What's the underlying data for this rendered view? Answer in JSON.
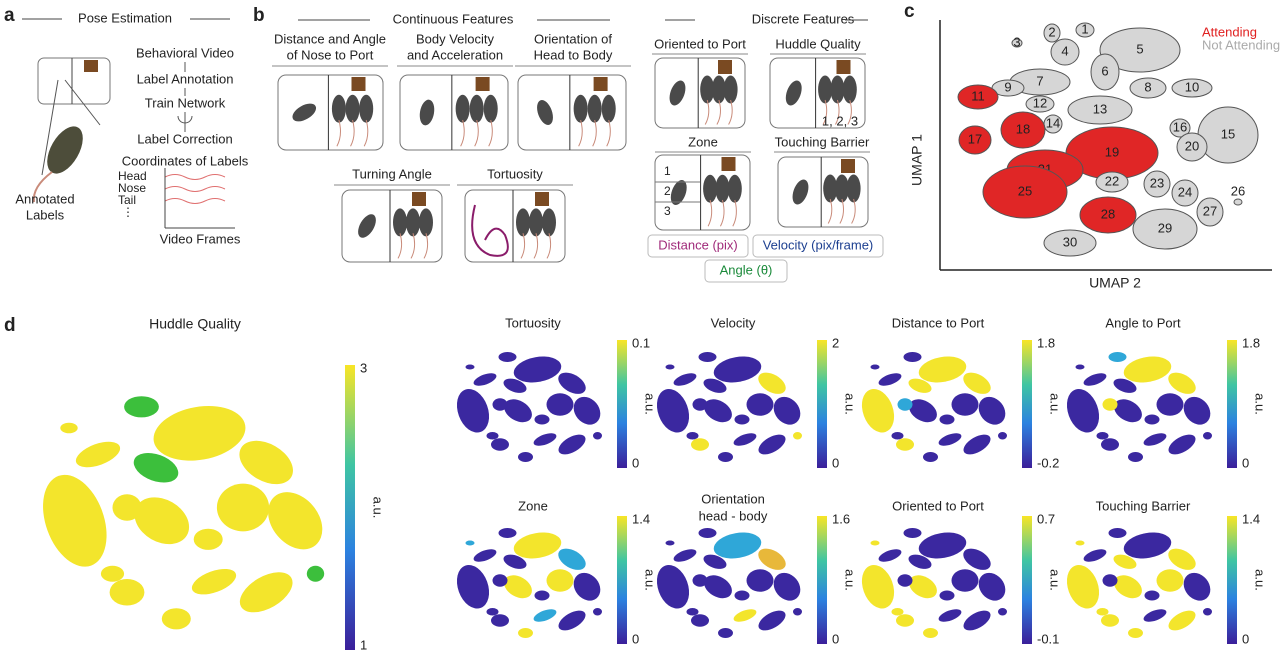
{
  "panel_a": {
    "label": "a",
    "title": "Pose Estimation",
    "steps": [
      "Behavioral Video",
      "Label Annotation",
      "Train Network",
      "Label Correction",
      "Coordinates of Labels"
    ],
    "traces": [
      "Head",
      "Nose",
      "Tail"
    ],
    "x_label": "Video Frames",
    "annotation": [
      "Annotated",
      "Labels"
    ]
  },
  "panel_b": {
    "label": "b",
    "continuous_title": "Continuous Features",
    "continuous": [
      {
        "title": [
          "Distance and Angle",
          "of Nose to Port"
        ]
      },
      {
        "title": [
          "Body Velocity",
          "and Acceleration"
        ]
      },
      {
        "title": [
          "Orientation of",
          "Head to Body"
        ]
      },
      {
        "title": [
          "Turning Angle"
        ]
      },
      {
        "title": [
          "Tortuosity"
        ]
      }
    ],
    "discrete_title": "Discrete Features",
    "discrete": [
      {
        "title": "Oriented to Port"
      },
      {
        "title": "Huddle Quality",
        "note": "1, 2, 3"
      },
      {
        "title": "Zone",
        "zones": [
          "1",
          "2",
          "3"
        ]
      },
      {
        "title": "Touching Barrier"
      }
    ],
    "legend": [
      "Distance (pix)",
      "Velocity (pix/frame)",
      "Angle (θ)"
    ]
  },
  "panel_c": {
    "label": "c",
    "legend": [
      "Attending",
      "Not Attending"
    ],
    "y_label": "UMAP 1",
    "x_label": "UMAP 2",
    "clusters": [
      "1",
      "2",
      "3",
      "4",
      "5",
      "6",
      "7",
      "8",
      "9",
      "10",
      "11",
      "12",
      "13",
      "14",
      "15",
      "16",
      "17",
      "18",
      "19",
      "20",
      "21",
      "22",
      "23",
      "24",
      "25",
      "26",
      "27",
      "28",
      "29",
      "30"
    ]
  },
  "panel_d": {
    "label": "d",
    "main": {
      "title": [
        "Huddle Quality"
      ],
      "max": "3",
      "min": "1",
      "unit": "a.u."
    },
    "plots": [
      {
        "title": [
          "Tortuosity"
        ],
        "max": "0.1",
        "min": "0",
        "unit": "a.u."
      },
      {
        "title": [
          "Velocity"
        ],
        "max": "2",
        "min": "0",
        "unit": "a.u."
      },
      {
        "title": [
          "Distance to Port"
        ],
        "max": "1.8",
        "min": "-0.2",
        "unit": "a.u."
      },
      {
        "title": [
          "Angle to Port"
        ],
        "max": "1.8",
        "min": "0",
        "unit": "a.u."
      },
      {
        "title": [
          "Zone"
        ],
        "max": "1.4",
        "min": "0",
        "unit": "a.u."
      },
      {
        "title": [
          "Orientation",
          "head - body"
        ],
        "max": "1.6",
        "min": "0",
        "unit": "a.u."
      },
      {
        "title": [
          "Oriented to Port"
        ],
        "max": "0.7",
        "min": "-0.1",
        "unit": "a.u."
      },
      {
        "title": [
          "Touching Barrier"
        ],
        "max": "1.4",
        "min": "0",
        "unit": "a.u."
      }
    ]
  }
}
